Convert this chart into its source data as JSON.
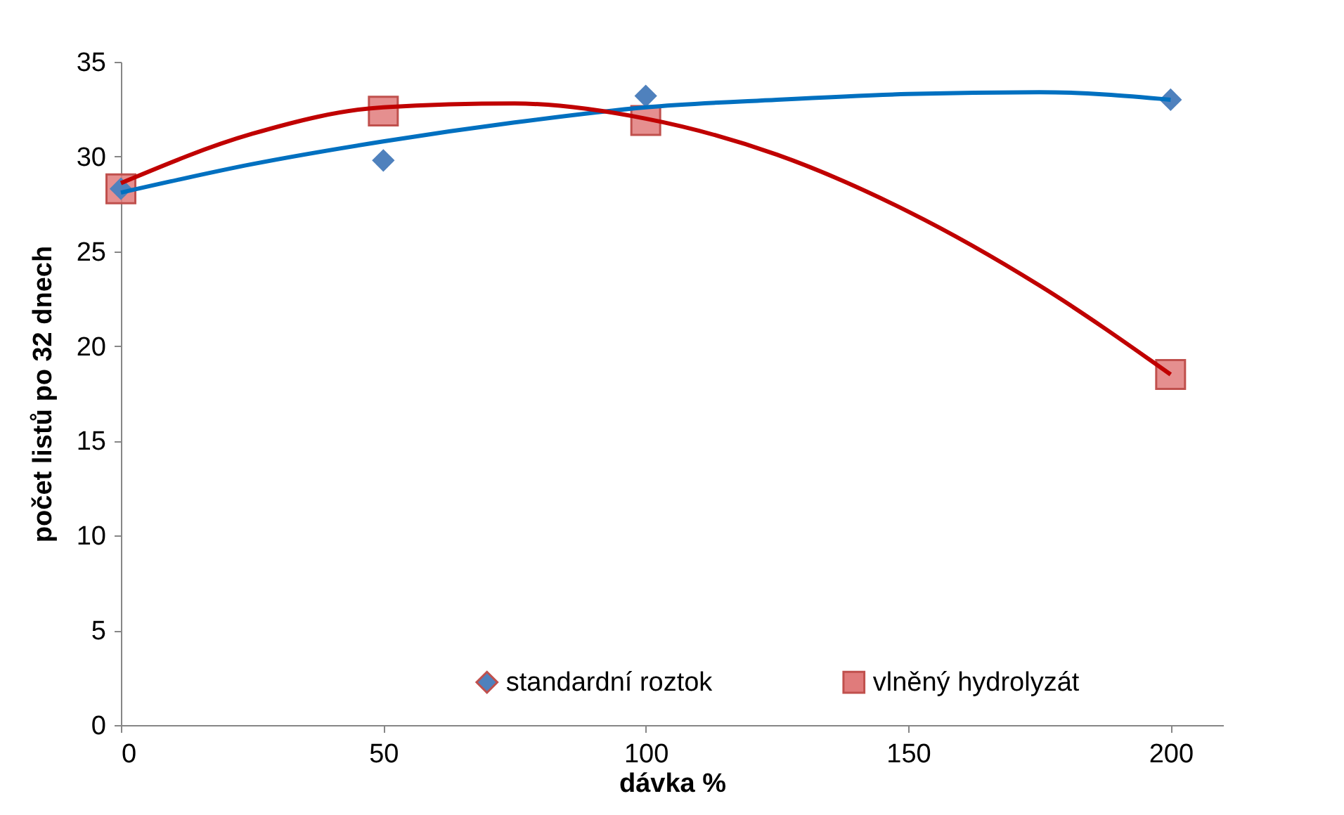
{
  "chart_data": {
    "type": "scatter",
    "xlabel": "dávka %",
    "ylabel": "počet listů po 32 dnech",
    "x": [
      0,
      50,
      100,
      200
    ],
    "series": [
      {
        "name": "standardní roztok",
        "color": "#4f81bd",
        "marker": "diamond",
        "values": [
          28.3,
          29.8,
          33.2,
          33.0
        ]
      },
      {
        "name": "vlněný hydrolyzát",
        "color": "#e07b7b",
        "marker": "square",
        "values": [
          28.3,
          32.4,
          31.9,
          18.5
        ]
      },
      {
        "type": "line",
        "color": "#0070c0",
        "x": [
          0,
          25,
          50,
          75,
          100,
          125,
          150,
          175,
          200
        ],
        "values": [
          28.1,
          29.6,
          30.8,
          31.8,
          32.6,
          33.0,
          33.3,
          33.4,
          33.0
        ]
      },
      {
        "type": "line",
        "color": "#c00000",
        "x": [
          0,
          25,
          50,
          75,
          100,
          125,
          150,
          175,
          200
        ],
        "values": [
          28.6,
          31.2,
          32.6,
          32.8,
          32.0,
          30.1,
          27.1,
          23.2,
          18.5
        ]
      }
    ],
    "xlim": [
      0,
      210
    ],
    "xticks": [
      0,
      50,
      100,
      150,
      200
    ],
    "ylim": [
      0,
      35
    ],
    "yticks": [
      0,
      5,
      10,
      15,
      20,
      25,
      30,
      35
    ],
    "grid": false,
    "legend": "bottom"
  }
}
